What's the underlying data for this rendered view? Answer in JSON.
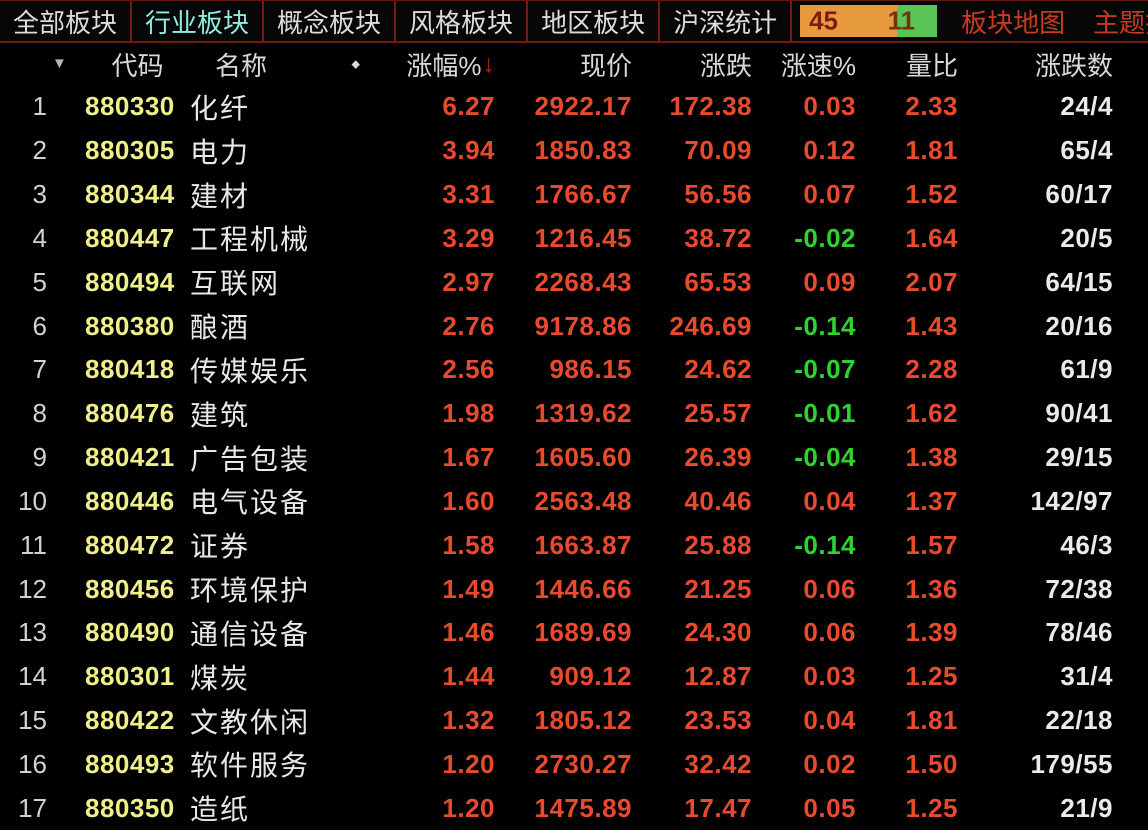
{
  "menubar": {
    "tabs": [
      {
        "label": "全部板块",
        "active": false
      },
      {
        "label": "行业板块",
        "active": true
      },
      {
        "label": "概念板块",
        "active": false
      },
      {
        "label": "风格板块",
        "active": false
      },
      {
        "label": "地区板块",
        "active": false
      },
      {
        "label": "沪深统计",
        "active": false
      }
    ],
    "breadth": {
      "advancers": "45",
      "decliners": "11"
    },
    "links": [
      {
        "label": "板块地图"
      },
      {
        "label": "主题投资"
      }
    ]
  },
  "icons": {
    "sort_triangle": "▼",
    "dot_separator": "◆",
    "sort_desc_arrow": "↓"
  },
  "header": {
    "code": "代码",
    "name": "名称",
    "pct": "涨幅%",
    "price": "现价",
    "chg": "涨跌",
    "speed": "涨速%",
    "ratio": "量比",
    "count": "涨跌数",
    "partial_next": "涨"
  },
  "colors": {
    "up_red": "#e84a2e",
    "down_green": "#2fd32f",
    "code_yellow": "#efef8b",
    "active_tab_cyan": "#8deee0",
    "link_red": "#c63a22",
    "breadth_orange": "#e89b3e",
    "breadth_green": "#5bc457",
    "menu_border_dark_red": "#6e1b10"
  },
  "table": {
    "rows": [
      {
        "idx": "1",
        "code": "880330",
        "name": "化纤",
        "pct": "6.27",
        "price": "2922.17",
        "chg": "172.38",
        "speed": "0.03",
        "ratio": "2.33",
        "count": "24/4"
      },
      {
        "idx": "2",
        "code": "880305",
        "name": "电力",
        "pct": "3.94",
        "price": "1850.83",
        "chg": "70.09",
        "speed": "0.12",
        "ratio": "1.81",
        "count": "65/4"
      },
      {
        "idx": "3",
        "code": "880344",
        "name": "建材",
        "pct": "3.31",
        "price": "1766.67",
        "chg": "56.56",
        "speed": "0.07",
        "ratio": "1.52",
        "count": "60/17"
      },
      {
        "idx": "4",
        "code": "880447",
        "name": "工程机械",
        "pct": "3.29",
        "price": "1216.45",
        "chg": "38.72",
        "speed": "-0.02",
        "ratio": "1.64",
        "count": "20/5"
      },
      {
        "idx": "5",
        "code": "880494",
        "name": "互联网",
        "pct": "2.97",
        "price": "2268.43",
        "chg": "65.53",
        "speed": "0.09",
        "ratio": "2.07",
        "count": "64/15"
      },
      {
        "idx": "6",
        "code": "880380",
        "name": "酿酒",
        "pct": "2.76",
        "price": "9178.86",
        "chg": "246.69",
        "speed": "-0.14",
        "ratio": "1.43",
        "count": "20/16"
      },
      {
        "idx": "7",
        "code": "880418",
        "name": "传媒娱乐",
        "pct": "2.56",
        "price": "986.15",
        "chg": "24.62",
        "speed": "-0.07",
        "ratio": "2.28",
        "count": "61/9"
      },
      {
        "idx": "8",
        "code": "880476",
        "name": "建筑",
        "pct": "1.98",
        "price": "1319.62",
        "chg": "25.57",
        "speed": "-0.01",
        "ratio": "1.62",
        "count": "90/41"
      },
      {
        "idx": "9",
        "code": "880421",
        "name": "广告包装",
        "pct": "1.67",
        "price": "1605.60",
        "chg": "26.39",
        "speed": "-0.04",
        "ratio": "1.38",
        "count": "29/15"
      },
      {
        "idx": "10",
        "code": "880446",
        "name": "电气设备",
        "pct": "1.60",
        "price": "2563.48",
        "chg": "40.46",
        "speed": "0.04",
        "ratio": "1.37",
        "count": "142/97"
      },
      {
        "idx": "11",
        "code": "880472",
        "name": "证券",
        "pct": "1.58",
        "price": "1663.87",
        "chg": "25.88",
        "speed": "-0.14",
        "ratio": "1.57",
        "count": "46/3"
      },
      {
        "idx": "12",
        "code": "880456",
        "name": "环境保护",
        "pct": "1.49",
        "price": "1446.66",
        "chg": "21.25",
        "speed": "0.06",
        "ratio": "1.36",
        "count": "72/38"
      },
      {
        "idx": "13",
        "code": "880490",
        "name": "通信设备",
        "pct": "1.46",
        "price": "1689.69",
        "chg": "24.30",
        "speed": "0.06",
        "ratio": "1.39",
        "count": "78/46"
      },
      {
        "idx": "14",
        "code": "880301",
        "name": "煤炭",
        "pct": "1.44",
        "price": "909.12",
        "chg": "12.87",
        "speed": "0.03",
        "ratio": "1.25",
        "count": "31/4"
      },
      {
        "idx": "15",
        "code": "880422",
        "name": "文教休闲",
        "pct": "1.32",
        "price": "1805.12",
        "chg": "23.53",
        "speed": "0.04",
        "ratio": "1.81",
        "count": "22/18"
      },
      {
        "idx": "16",
        "code": "880493",
        "name": "软件服务",
        "pct": "1.20",
        "price": "2730.27",
        "chg": "32.42",
        "speed": "0.02",
        "ratio": "1.50",
        "count": "179/55"
      },
      {
        "idx": "17",
        "code": "880350",
        "name": "造纸",
        "pct": "1.20",
        "price": "1475.89",
        "chg": "17.47",
        "speed": "0.05",
        "ratio": "1.25",
        "count": "21/9"
      }
    ]
  }
}
